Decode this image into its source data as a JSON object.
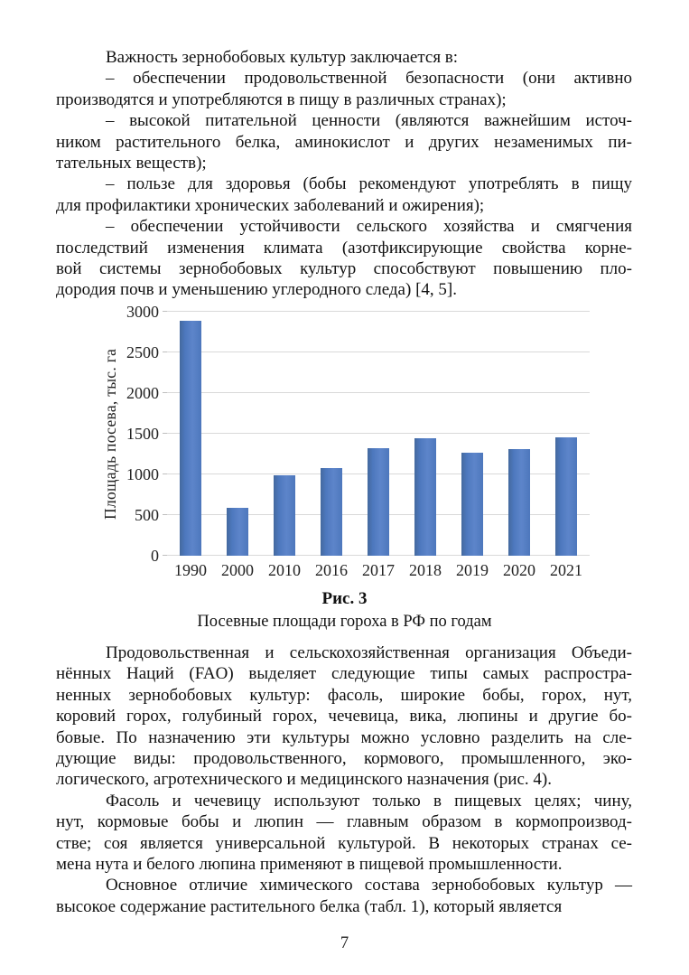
{
  "page": {
    "number": "7"
  },
  "body": {
    "paragraphs_top": [
      [
        "Важность зернобобовых культур заключается в:"
      ],
      [
        "– обеспечении продовольственной безопасности (они активно",
        "производятся и употребляются в пищу в различных странах);"
      ],
      [
        "– высокой питательной ценности (являются важнейшим источ-",
        "ником растительного белка, аминокислот и других незаменимых пи-",
        "тательных веществ);"
      ],
      [
        "– пользе для здоровья (бобы рекомендуют употреблять в пищу",
        "для профилактики хронических заболеваний и ожирения);"
      ],
      [
        "– обеспечении устойчивости сельского хозяйства и смягчения",
        "последствий изменения климата (азотфиксирующие свойства корне-",
        "вой системы зернобобовых культур способствуют повышению пло-",
        "дородия почв и уменьшению углеродного следа) [4, 5]."
      ]
    ],
    "paragraphs_bottom": [
      [
        "Продовольственная и сельскохозяйственная организация Объеди-",
        "нённых Наций (FAO) выделяет следующие типы самых распростра-",
        "ненных зернобобовых культур: фасоль, широкие бобы, горох, нут,",
        "коровий горох, голубиный горох, чечевица, вика, люпины и другие бо-",
        "бовые. По назначению эти культуры можно условно разделить на сле-",
        "дующие виды: продовольственного, кормового, промышленного, эко-",
        "логического, агротехнического и медицинского назначения (рис. 4)."
      ],
      [
        "Фасоль и чечевицу используют только в пищевых целях; чину,",
        "нут, кормовые бобы и люпин — главным образом в кормопроизвод-",
        "стве; соя является универсальной культурой. В некоторых странах се-",
        "мена нута и белого люпина применяют в пищевой промышленности."
      ],
      [
        "Основное отличие химического состава зернобобовых культур —",
        "высокое содержание растительного белка (табл. 1), который является"
      ]
    ]
  },
  "figure": {
    "label": "Рис. 3",
    "caption": "Посевные площади гороха в РФ по годам"
  },
  "chart_data": {
    "type": "bar",
    "title": "",
    "xlabel": "",
    "ylabel": "Площадь посева, тыс. га",
    "categories": [
      "1990",
      "2000",
      "2010",
      "2016",
      "2017",
      "2018",
      "2019",
      "2020",
      "2021"
    ],
    "values": [
      2890,
      590,
      990,
      1080,
      1320,
      1440,
      1260,
      1310,
      1450
    ],
    "ylim": [
      0,
      3000
    ],
    "yticks": [
      0,
      500,
      1000,
      1500,
      2000,
      2500,
      3000
    ],
    "grid": true,
    "legend": false,
    "bar_color": "#4d78be",
    "gridline_color": "#d9d9d9"
  }
}
